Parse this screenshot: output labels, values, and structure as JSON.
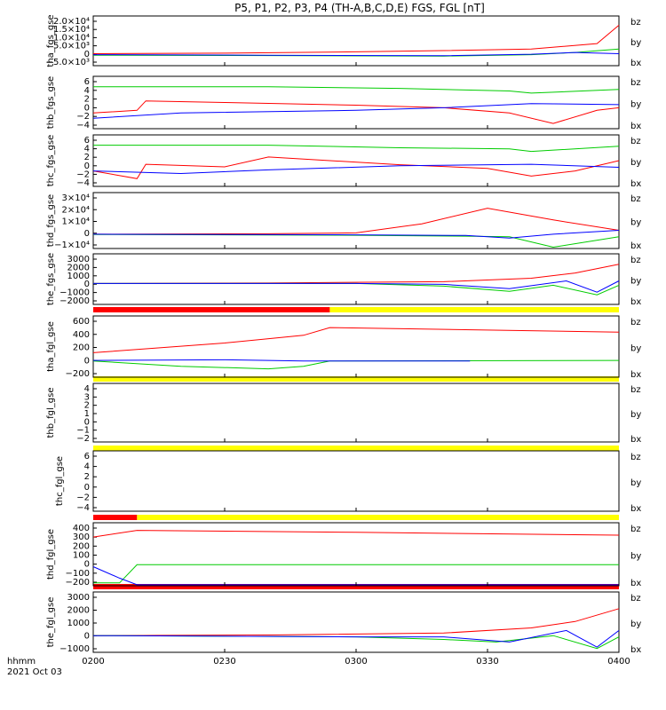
{
  "title": "P5, P1, P2, P3, P4 (TH-A,B,C,D,E) FGS, FGL [nT]",
  "footer": {
    "hhmm": "hhmm",
    "date": "2021 Oct 03"
  },
  "x_ticks": [
    "0200",
    "0230",
    "0300",
    "0330",
    "0400"
  ],
  "legend_colors": {
    "bz": "#ff0000",
    "by": "#00cc00",
    "bx": "#0000ff"
  },
  "chart_data": {
    "type": "line",
    "x_range": [
      "0200",
      "0400"
    ],
    "x_ticks": [
      "0200",
      "0230",
      "0300",
      "0330",
      "0400"
    ],
    "panels": [
      {
        "ylabel": "tha_fgs_gse",
        "yticks": [
          "2.0×10⁴",
          "1.5×10⁴",
          "1.0×10⁴",
          "5.0×10³",
          "0",
          "−5.0×10³"
        ],
        "ylim": [
          -6000,
          21000
        ],
        "series": [
          {
            "name": "bz",
            "points": [
              [
                0,
                500
              ],
              [
                30,
                800
              ],
              [
                60,
                1500
              ],
              [
                80,
                2200
              ],
              [
                100,
                3000
              ],
              [
                115,
                6000
              ],
              [
                120,
                16000
              ]
            ]
          },
          {
            "name": "by",
            "points": [
              [
                0,
                -300
              ],
              [
                40,
                -500
              ],
              [
                80,
                -800
              ],
              [
                100,
                0
              ],
              [
                110,
                1200
              ],
              [
                120,
                3000
              ]
            ]
          },
          {
            "name": "bx",
            "points": [
              [
                0,
                0
              ],
              [
                40,
                -300
              ],
              [
                80,
                -600
              ],
              [
                100,
                200
              ],
              [
                110,
                1200
              ],
              [
                120,
                500
              ]
            ]
          }
        ]
      },
      {
        "ylabel": "thb_fgs_gse",
        "yticks": [
          "6",
          "4",
          "2",
          "0",
          "−2",
          "−4"
        ],
        "ylim": [
          -4,
          6
        ],
        "series": [
          {
            "name": "bz",
            "points": [
              [
                0,
                -1
              ],
              [
                10,
                -0.5
              ],
              [
                12,
                1.3
              ],
              [
                30,
                1
              ],
              [
                60,
                0.5
              ],
              [
                80,
                0
              ],
              [
                95,
                -1
              ],
              [
                105,
                -3
              ],
              [
                115,
                -0.5
              ],
              [
                120,
                0
              ]
            ]
          },
          {
            "name": "by",
            "points": [
              [
                0,
                4
              ],
              [
                40,
                4
              ],
              [
                70,
                3.7
              ],
              [
                95,
                3.2
              ],
              [
                100,
                2.8
              ],
              [
                120,
                3.5
              ]
            ]
          },
          {
            "name": "bx",
            "points": [
              [
                0,
                -2
              ],
              [
                20,
                -1
              ],
              [
                60,
                -0.5
              ],
              [
                80,
                0
              ],
              [
                100,
                0.8
              ],
              [
                120,
                0.6
              ]
            ]
          }
        ]
      },
      {
        "ylabel": "thc_fgs_gse",
        "yticks": [
          "6",
          "4",
          "2",
          "0",
          "−2",
          "−4"
        ],
        "ylim": [
          -4,
          6
        ],
        "series": [
          {
            "name": "bz",
            "points": [
              [
                0,
                -1
              ],
              [
                10,
                -2.5
              ],
              [
                12,
                0.3
              ],
              [
                30,
                -0.2
              ],
              [
                40,
                1.7
              ],
              [
                70,
                0.2
              ],
              [
                90,
                -0.5
              ],
              [
                100,
                -2
              ],
              [
                110,
                -1
              ],
              [
                120,
                1
              ]
            ]
          },
          {
            "name": "by",
            "points": [
              [
                0,
                4
              ],
              [
                40,
                4
              ],
              [
                70,
                3.5
              ],
              [
                95,
                3.3
              ],
              [
                100,
                2.8
              ],
              [
                120,
                3.8
              ]
            ]
          },
          {
            "name": "bx",
            "points": [
              [
                0,
                -1
              ],
              [
                20,
                -1.5
              ],
              [
                40,
                -0.8
              ],
              [
                70,
                0
              ],
              [
                100,
                0.3
              ],
              [
                120,
                -0.3
              ]
            ]
          }
        ]
      },
      {
        "ylabel": "thd_fgs_gse",
        "yticks": [
          "3×10⁴",
          "2×10⁴",
          "1×10⁴",
          "0",
          "−1×10⁴"
        ],
        "ylim": [
          -11000,
          32000
        ],
        "series": [
          {
            "name": "bz",
            "points": [
              [
                0,
                0
              ],
              [
                40,
                300
              ],
              [
                60,
                1000
              ],
              [
                75,
                8000
              ],
              [
                90,
                20000
              ],
              [
                105,
                11000
              ],
              [
                120,
                3000
              ]
            ]
          },
          {
            "name": "by",
            "points": [
              [
                0,
                -200
              ],
              [
                60,
                -800
              ],
              [
                85,
                -1500
              ],
              [
                95,
                -2000
              ],
              [
                105,
                -10000
              ],
              [
                120,
                -2000
              ]
            ]
          },
          {
            "name": "bx",
            "points": [
              [
                0,
                0
              ],
              [
                60,
                -500
              ],
              [
                85,
                -1000
              ],
              [
                95,
                -3000
              ],
              [
                105,
                0
              ],
              [
                120,
                3000
              ]
            ]
          }
        ]
      },
      {
        "ylabel": "the_fgs_gse",
        "yticks": [
          "3000",
          "2000",
          "1000",
          "0",
          "−1000",
          "−2000"
        ],
        "ylim": [
          -2400,
          3400
        ],
        "series": [
          {
            "name": "bz",
            "points": [
              [
                0,
                0
              ],
              [
                40,
                50
              ],
              [
                80,
                200
              ],
              [
                100,
                600
              ],
              [
                110,
                1200
              ],
              [
                120,
                2200
              ]
            ]
          },
          {
            "name": "by",
            "points": [
              [
                0,
                0
              ],
              [
                60,
                0
              ],
              [
                80,
                -300
              ],
              [
                95,
                -900
              ],
              [
                105,
                -200
              ],
              [
                115,
                -1300
              ],
              [
                120,
                -200
              ]
            ]
          },
          {
            "name": "bx",
            "points": [
              [
                0,
                0
              ],
              [
                60,
                0
              ],
              [
                80,
                -100
              ],
              [
                95,
                -600
              ],
              [
                108,
                300
              ],
              [
                115,
                -1000
              ],
              [
                120,
                300
              ]
            ]
          }
        ]
      },
      {
        "ylabel": "tha_fgl_gse",
        "yticks": [
          "600",
          "400",
          "200",
          "0",
          "−200"
        ],
        "ylim": [
          -250,
          700
        ],
        "series": [
          {
            "name": "bz",
            "points": [
              [
                0,
                130
              ],
              [
                30,
                280
              ],
              [
                48,
                400
              ],
              [
                54,
                520
              ],
              [
                120,
                450
              ]
            ]
          },
          {
            "name": "by",
            "points": [
              [
                0,
                0
              ],
              [
                20,
                -80
              ],
              [
                40,
                -120
              ],
              [
                48,
                -80
              ],
              [
                54,
                0
              ],
              [
                120,
                10
              ]
            ]
          },
          {
            "name": "bx",
            "points": [
              [
                0,
                10
              ],
              [
                30,
                20
              ],
              [
                48,
                0
              ],
              [
                54,
                0
              ],
              [
                86,
                0
              ]
            ]
          }
        ]
      },
      {
        "ylabel": "thb_fgl_gse",
        "yticks": [
          "4",
          "3",
          "2",
          "1",
          "0",
          "−1",
          "−2"
        ],
        "ylim": [
          -2.5,
          4.5
        ],
        "series": []
      },
      {
        "ylabel": "thc_fgl_gse",
        "yticks": [
          "6",
          "4",
          "2",
          "0",
          "−2",
          "−4"
        ],
        "ylim": [
          -5,
          7
        ],
        "series": []
      },
      {
        "ylabel": "thd_fgl_gse",
        "yticks": [
          "400",
          "300",
          "200",
          "100",
          "0",
          "−100",
          "−200"
        ],
        "ylim": [
          -230,
          430
        ],
        "series": [
          {
            "name": "bz",
            "points": [
              [
                0,
                280
              ],
              [
                10,
                350
              ],
              [
                60,
                330
              ],
              [
                120,
                300
              ]
            ]
          },
          {
            "name": "by",
            "points": [
              [
                0,
                -200
              ],
              [
                6,
                -200
              ],
              [
                10,
                -10
              ],
              [
                120,
                -10
              ]
            ]
          },
          {
            "name": "bx",
            "points": [
              [
                0,
                -30
              ],
              [
                6,
                -150
              ],
              [
                10,
                -220
              ],
              [
                120,
                -220
              ]
            ]
          }
        ]
      },
      {
        "ylabel": "the_fgl_gse",
        "yticks": [
          "3000",
          "2000",
          "1000",
          "0",
          "−1000"
        ],
        "ylim": [
          -1300,
          3400
        ],
        "series": [
          {
            "name": "bz",
            "points": [
              [
                0,
                0
              ],
              [
                40,
                50
              ],
              [
                80,
                200
              ],
              [
                100,
                600
              ],
              [
                110,
                1100
              ],
              [
                120,
                2100
              ]
            ]
          },
          {
            "name": "by",
            "points": [
              [
                0,
                0
              ],
              [
                60,
                -100
              ],
              [
                80,
                -300
              ],
              [
                92,
                -500
              ],
              [
                105,
                0
              ],
              [
                115,
                -1000
              ],
              [
                120,
                -100
              ]
            ]
          },
          {
            "name": "bx",
            "points": [
              [
                0,
                0
              ],
              [
                60,
                -100
              ],
              [
                80,
                -100
              ],
              [
                95,
                -500
              ],
              [
                108,
                400
              ],
              [
                115,
                -900
              ],
              [
                120,
                400
              ]
            ]
          }
        ]
      }
    ]
  }
}
